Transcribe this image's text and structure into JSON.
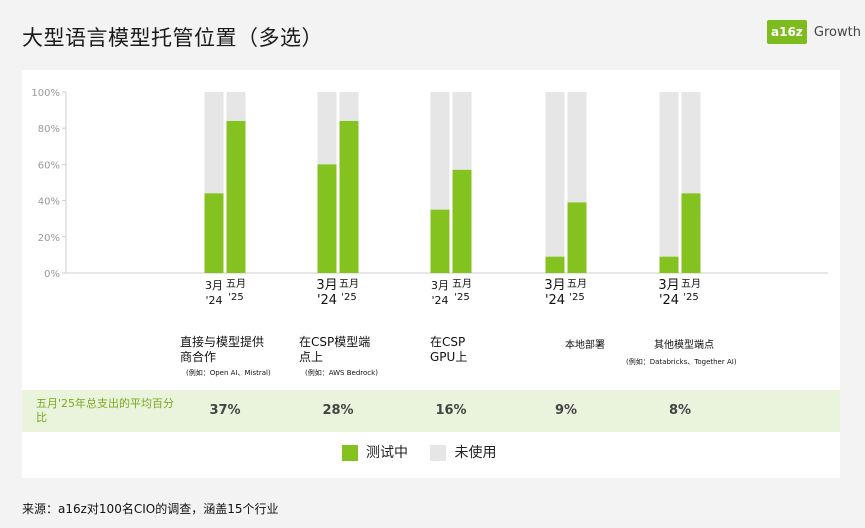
{
  "title": "大型语言模型托管位置（多选）",
  "logo": {
    "mark": "a16z",
    "text": "Growth"
  },
  "chart_data": {
    "type": "bar",
    "yticks": [
      "0%",
      "20%",
      "40%",
      "60%",
      "80%",
      "100%"
    ],
    "ylim": [
      0,
      100
    ],
    "grid": false,
    "period_labels": [
      {
        "month": "3月",
        "year": "'24"
      },
      {
        "month": "五月",
        "year": "'25"
      }
    ],
    "categories": [
      {
        "label": "直接与模型提供商合作",
        "example": "(例如：Open AI、Mistral)",
        "values": [
          44,
          84
        ],
        "share": "37%"
      },
      {
        "label": "在CSP模型端点上",
        "example": "(例如：AWS Bedrock)",
        "values": [
          60,
          84
        ],
        "share": "28%"
      },
      {
        "label": "在CSP GPU上",
        "example": "",
        "values": [
          35,
          57
        ],
        "share": "16%"
      },
      {
        "label": "本地部署",
        "example": "",
        "values": [
          9,
          39
        ],
        "share": "9%"
      },
      {
        "label": "其他模型端点",
        "example": "(例如：Databricks、Together AI)",
        "values": [
          9,
          44
        ],
        "share": "8%"
      }
    ],
    "legend": [
      {
        "name": "测试中",
        "color": "#84c21f"
      },
      {
        "name": "未使用",
        "color": "#e6e6e6"
      }
    ],
    "summary_label": "五月'25年总支出的平均百分比"
  },
  "colors": {
    "tested": "#84c21f",
    "unused": "#e6e6e6",
    "accent_text": "#7aa821"
  },
  "source": "来源：a16z对100名CIO的调查，涵盖15个行业"
}
